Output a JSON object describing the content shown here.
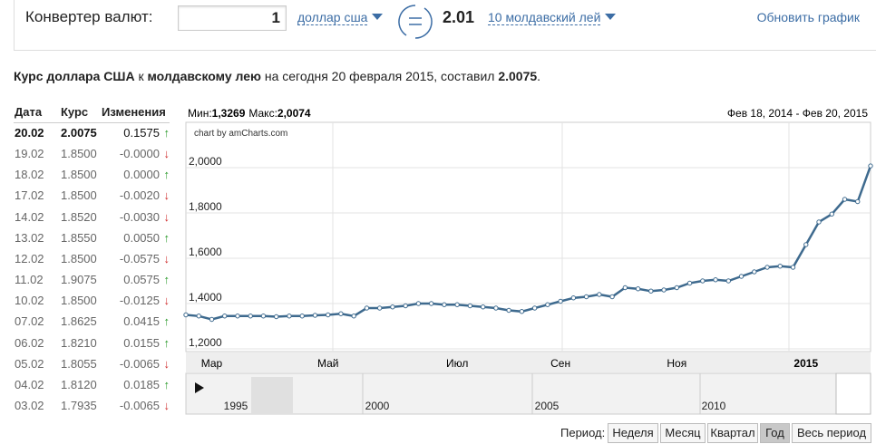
{
  "converter": {
    "label": "Конвертер валют:",
    "amount": "1",
    "from": "доллар сша",
    "result": "2.01",
    "to": "10 молдавский лей",
    "refresh": "Обновить график"
  },
  "summary": [
    "Курс доллара США",
    " к ",
    "молдавскому лею",
    " на сегодня 20 февраля 2015, составил ",
    "2.0075",
    "."
  ],
  "table": {
    "headers": [
      "Дата",
      "Курс",
      "Изменения"
    ],
    "rows": [
      [
        "20.02",
        "2.0075",
        "0.1575",
        "↑"
      ],
      [
        "19.02",
        "1.8500",
        "-0.0000",
        "↓"
      ],
      [
        "18.02",
        "1.8500",
        "0.0000",
        "↑"
      ],
      [
        "17.02",
        "1.8500",
        "-0.0020",
        "↓"
      ],
      [
        "14.02",
        "1.8520",
        "-0.0030",
        "↓"
      ],
      [
        "13.02",
        "1.8550",
        "0.0050",
        "↑"
      ],
      [
        "12.02",
        "1.8500",
        "-0.0575",
        "↓"
      ],
      [
        "11.02",
        "1.9075",
        "0.0575",
        "↑"
      ],
      [
        "10.02",
        "1.8500",
        "-0.0125",
        "↓"
      ],
      [
        "07.02",
        "1.8625",
        "0.0415",
        "↑"
      ],
      [
        "06.02",
        "1.8210",
        "0.0155",
        "↑"
      ],
      [
        "05.02",
        "1.8055",
        "-0.0065",
        "↓"
      ],
      [
        "04.02",
        "1.8120",
        "0.0185",
        "↑"
      ],
      [
        "03.02",
        "1.7935",
        "-0.0065",
        "↓"
      ]
    ]
  },
  "chart_data": {
    "type": "line",
    "min_label": "Мин:",
    "min": "1,3269",
    "max_label": "Макс:",
    "max": "2,0074",
    "range": "Фев 18, 2014 - Фев 20, 2015",
    "credit": "chart by amCharts.com",
    "categories": [
      null,
      null,
      "Мар",
      null,
      null,
      null,
      null,
      null,
      null,
      null,
      null,
      "Май",
      null,
      null,
      null,
      null,
      null,
      null,
      null,
      null,
      null,
      "Июл",
      null,
      null,
      null,
      null,
      null,
      null,
      null,
      "Сен",
      null,
      null,
      null,
      null,
      null,
      null,
      null,
      null,
      "Ноя",
      null,
      null,
      null,
      null,
      null,
      null,
      null,
      null,
      null,
      "2015",
      null,
      null,
      null,
      null,
      null
    ],
    "values": [
      1.35,
      1.345,
      1.33,
      1.345,
      1.345,
      1.345,
      1.345,
      1.342,
      1.345,
      1.345,
      1.348,
      1.35,
      1.355,
      1.345,
      1.38,
      1.38,
      1.385,
      1.39,
      1.4,
      1.4,
      1.395,
      1.395,
      1.39,
      1.385,
      1.38,
      1.37,
      1.365,
      1.38,
      1.395,
      1.41,
      1.425,
      1.43,
      1.44,
      1.43,
      1.47,
      1.465,
      1.455,
      1.46,
      1.47,
      1.49,
      1.5,
      1.505,
      1.5,
      1.52,
      1.54,
      1.56,
      1.565,
      1.56,
      1.66,
      1.76,
      1.795,
      1.86,
      1.85,
      2.0075
    ],
    "color": "#3e6a8e",
    "ylim": [
      1.188,
      2.2
    ],
    "yticks": [
      {
        "value": 1.2,
        "label": "1,2000"
      },
      {
        "value": 1.4,
        "label": "1,4000"
      },
      {
        "value": 1.6,
        "label": "1,6000"
      },
      {
        "value": 1.8,
        "label": "1,8000"
      },
      {
        "value": 2,
        "label": "2,0000"
      }
    ],
    "grid": true
  },
  "navigator": {
    "years": [
      "1995",
      "2000",
      "2005",
      "2010"
    ]
  },
  "period": {
    "label": "Период:",
    "buttons": [
      "Неделя",
      "Месяц",
      "Квартал",
      "Год",
      "Весь период"
    ],
    "active": 3
  }
}
